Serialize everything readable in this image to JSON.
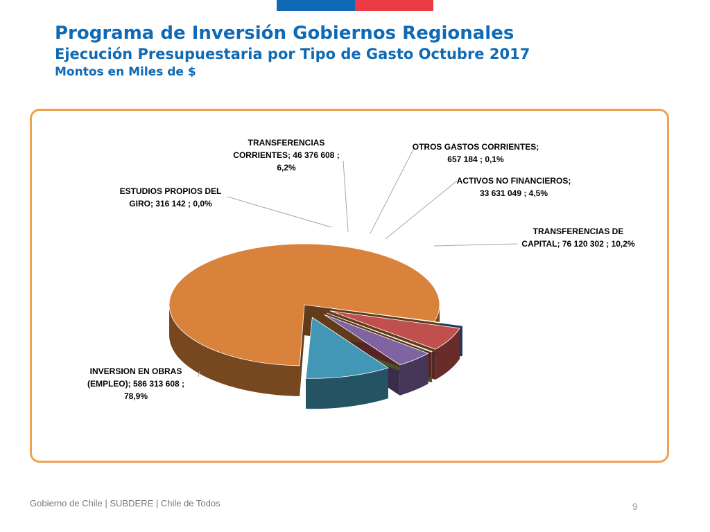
{
  "header": {
    "title": "Programa de Inversión Gobiernos Regionales",
    "subtitle": "Ejecución Presupuestaria por Tipo de Gasto Octubre 2017",
    "units": "Montos en Miles de $"
  },
  "colors": {
    "flag_blue": "#0f69b4",
    "flag_red": "#eb3c46",
    "title": "#0f69b4",
    "frame_border": "#f0a050"
  },
  "chart_data": {
    "type": "pie",
    "style": "3d-exploded",
    "title": "",
    "slices": [
      {
        "category": "INVERSION EN OBRAS (EMPLEO)",
        "value": 586313608,
        "percent": 78.9,
        "color": "#d9823b",
        "label_lines": [
          "INVERSION EN OBRAS",
          "(EMPLEO);  586 313 608 ;",
          "78,9%"
        ]
      },
      {
        "category": "ESTUDIOS PROPIOS DEL GIRO",
        "value": 316142,
        "percent": 0.0,
        "color": "#4f7bc0",
        "label_lines": [
          "ESTUDIOS PROPIOS DEL",
          "GIRO;  316 142 ; 0,0%"
        ]
      },
      {
        "category": "TRANSFERENCIAS CORRIENTES",
        "value": 46376608,
        "percent": 6.2,
        "color": "#c0504d",
        "label_lines": [
          "TRANSFERENCIAS",
          "CORRIENTES;  46 376 608 ;",
          "6,2%"
        ]
      },
      {
        "category": "OTROS GASTOS CORRIENTES",
        "value": 657184,
        "percent": 0.1,
        "color": "#9bbb59",
        "label_lines": [
          "OTROS GASTOS CORRIENTES;",
          "657 184 ; 0,1%"
        ]
      },
      {
        "category": "ACTIVOS NO FINANCIEROS",
        "value": 33631049,
        "percent": 4.5,
        "color": "#8064a2",
        "label_lines": [
          "ACTIVOS NO FINANCIEROS;",
          "33 631 049 ; 4,5%"
        ]
      },
      {
        "category": "TRANSFERENCIAS DE CAPITAL",
        "value": 76120302,
        "percent": 10.2,
        "color": "#4197b5",
        "label_lines": [
          "TRANSFERENCIAS DE",
          "CAPITAL;  76 120 302 ; 10,2%"
        ]
      }
    ]
  },
  "footer": {
    "text": "Gobierno de Chile | SUBDERE | Chile de Todos",
    "page_number": "9"
  }
}
